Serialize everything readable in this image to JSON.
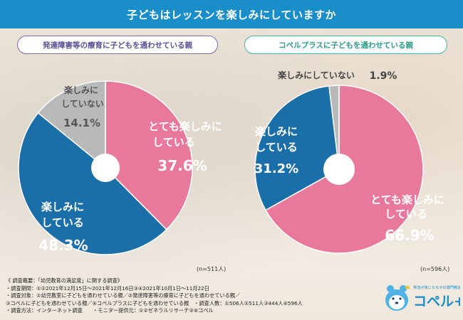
{
  "title": "子どもはレッスンを楽しみにしていますか",
  "chart_data": [
    {
      "type": "pie",
      "title": "発達障害等の療育に子どもを通わせている親",
      "sample": "(n=511人)",
      "slices": [
        {
          "label": [
            "とても楽しみに",
            "している"
          ],
          "value": 37.6,
          "value_text": "37.6%",
          "color": "#e8799a"
        },
        {
          "label": [
            "楽しみに",
            "している"
          ],
          "value": 48.3,
          "value_text": "48.3%",
          "color": "#1b6fa8"
        },
        {
          "label": [
            "楽しみに",
            "していない"
          ],
          "value": 14.1,
          "value_text": "14.1%",
          "color": "#b9b9b9"
        }
      ]
    },
    {
      "type": "pie",
      "title": "コペルプラスに子どもを通わせている親",
      "sample": "(n=596人)",
      "slices": [
        {
          "label": [
            "とても楽しみに",
            "している"
          ],
          "value": 66.9,
          "value_text": "66.9%",
          "color": "#e8799a"
        },
        {
          "label": [
            "楽しみに",
            "している"
          ],
          "value": 31.2,
          "value_text": "31.2%",
          "color": "#1b6fa8"
        },
        {
          "label": [
            "楽しみにしていない"
          ],
          "value": 1.9,
          "value_text": "1.9%",
          "color": "#b9b9b9"
        }
      ]
    }
  ],
  "notes": [
    "《 調査概要：「幼児教育の満足度」に関する調査》",
    "・調査期間：①②2021年12月15日～2021年12月16日③④2021年10月1日～11月22日",
    "・調査対象：①幼児教室に子どもを通わせている親／②発達障害等の療育に子どもを通わせている親／",
    "③コペルに子どもを通わせている親／④コペルプラスに子どもを通わせている親　・調査人数：①506人②511人③444人④596人",
    "・調査方法：インターネット調査　　・モニター提供元：①②ゼネラルリサーチ③④コペル"
  ],
  "logo": {
    "tagline": "発達が気になる子の専門教室",
    "name": "コペル+"
  }
}
